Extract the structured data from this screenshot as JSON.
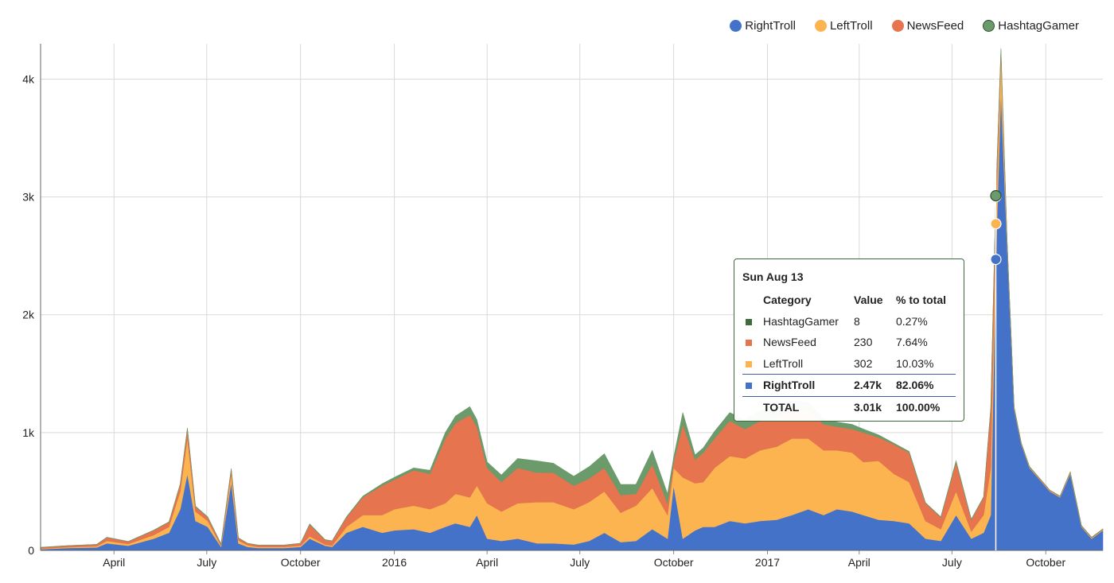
{
  "chart_data": {
    "type": "area",
    "stacked": true,
    "x_axis": {
      "tick_labels": [
        "April",
        "July",
        "October",
        "2016",
        "April",
        "July",
        "October",
        "2017",
        "April",
        "July",
        "October"
      ],
      "tick_dates": [
        "2015-04-01",
        "2015-07-01",
        "2015-10-01",
        "2016-01-01",
        "2016-04-01",
        "2016-07-01",
        "2016-10-01",
        "2017-01-01",
        "2017-04-01",
        "2017-07-01",
        "2017-10-01"
      ],
      "range": [
        "2015-01-19",
        "2017-11-26"
      ]
    },
    "y_axis": {
      "tick_labels": [
        "0",
        "1k",
        "2k",
        "3k",
        "4k"
      ],
      "tick_values": [
        0,
        1000,
        2000,
        3000,
        4000
      ],
      "range": [
        0,
        4300
      ]
    },
    "grid": true,
    "legend_placement": "top-right",
    "x": [
      "2015-01-19",
      "2015-02-15",
      "2015-03-15",
      "2015-03-25",
      "2015-04-15",
      "2015-05-10",
      "2015-05-25",
      "2015-06-05",
      "2015-06-12",
      "2015-06-20",
      "2015-07-02",
      "2015-07-15",
      "2015-07-25",
      "2015-08-01",
      "2015-08-10",
      "2015-08-20",
      "2015-09-01",
      "2015-09-15",
      "2015-10-01",
      "2015-10-10",
      "2015-10-25",
      "2015-11-01",
      "2015-11-15",
      "2015-12-01",
      "2015-12-20",
      "2016-01-01",
      "2016-01-20",
      "2016-02-05",
      "2016-02-20",
      "2016-03-01",
      "2016-03-15",
      "2016-03-22",
      "2016-04-01",
      "2016-04-15",
      "2016-05-01",
      "2016-05-20",
      "2016-06-05",
      "2016-06-25",
      "2016-07-10",
      "2016-07-25",
      "2016-08-10",
      "2016-08-25",
      "2016-09-10",
      "2016-09-25",
      "2016-10-01",
      "2016-10-10",
      "2016-10-22",
      "2016-10-30",
      "2016-11-10",
      "2016-11-25",
      "2016-12-10",
      "2016-12-25",
      "2017-01-10",
      "2017-01-25",
      "2017-02-10",
      "2017-02-25",
      "2017-03-10",
      "2017-03-25",
      "2017-04-05",
      "2017-04-20",
      "2017-05-05",
      "2017-05-20",
      "2017-06-05",
      "2017-06-20",
      "2017-07-05",
      "2017-07-20",
      "2017-08-01",
      "2017-08-08",
      "2017-08-13",
      "2017-08-18",
      "2017-08-24",
      "2017-08-31",
      "2017-09-07",
      "2017-09-15",
      "2017-09-25",
      "2017-10-05",
      "2017-10-15",
      "2017-10-25",
      "2017-11-05",
      "2017-11-15",
      "2017-11-26"
    ],
    "series": [
      {
        "name": "RightTroll",
        "color": "#4472c8",
        "values": [
          10,
          20,
          25,
          60,
          40,
          100,
          150,
          350,
          650,
          250,
          200,
          30,
          580,
          60,
          30,
          20,
          20,
          20,
          30,
          100,
          40,
          30,
          150,
          200,
          150,
          170,
          180,
          150,
          200,
          230,
          200,
          300,
          100,
          80,
          100,
          60,
          60,
          50,
          80,
          150,
          70,
          80,
          180,
          100,
          550,
          100,
          170,
          200,
          200,
          250,
          230,
          250,
          260,
          300,
          350,
          300,
          350,
          330,
          300,
          260,
          250,
          230,
          100,
          80,
          300,
          100,
          150,
          300,
          2470,
          3900,
          2600,
          1200,
          900,
          700,
          600,
          500,
          450,
          650,
          200,
          100,
          170
        ]
      },
      {
        "name": "LeftTroll",
        "color": "#fbb450",
        "values": [
          5,
          8,
          10,
          20,
          15,
          30,
          50,
          150,
          300,
          80,
          50,
          10,
          70,
          25,
          15,
          10,
          10,
          10,
          10,
          20,
          10,
          10,
          50,
          100,
          150,
          180,
          200,
          200,
          200,
          250,
          250,
          250,
          300,
          250,
          300,
          350,
          350,
          300,
          330,
          350,
          250,
          300,
          350,
          200,
          150,
          520,
          400,
          380,
          500,
          550,
          550,
          600,
          620,
          650,
          600,
          550,
          500,
          500,
          450,
          500,
          400,
          350,
          150,
          100,
          200,
          60,
          150,
          400,
          302,
          300,
          30,
          10,
          5,
          5,
          5,
          5,
          5,
          10,
          5,
          5,
          5
        ]
      },
      {
        "name": "NewsFeed",
        "color": "#e5744f",
        "values": [
          10,
          12,
          15,
          30,
          20,
          40,
          40,
          60,
          80,
          40,
          30,
          15,
          40,
          20,
          15,
          15,
          15,
          15,
          20,
          100,
          40,
          40,
          80,
          150,
          250,
          250,
          300,
          300,
          550,
          600,
          700,
          500,
          300,
          250,
          300,
          250,
          250,
          200,
          200,
          200,
          150,
          100,
          200,
          100,
          50,
          450,
          200,
          250,
          250,
          300,
          250,
          250,
          250,
          250,
          250,
          220,
          200,
          200,
          250,
          200,
          250,
          250,
          150,
          100,
          250,
          100,
          150,
          500,
          230,
          50,
          10,
          5,
          5,
          5,
          5,
          5,
          5,
          5,
          5,
          5,
          5
        ]
      },
      {
        "name": "HashtagGamer",
        "color": "#6b9a6b",
        "values": [
          1,
          1,
          1,
          2,
          1,
          2,
          3,
          5,
          10,
          5,
          5,
          1,
          5,
          2,
          1,
          1,
          1,
          1,
          1,
          5,
          2,
          2,
          5,
          10,
          15,
          20,
          20,
          30,
          50,
          60,
          70,
          60,
          50,
          60,
          80,
          100,
          80,
          80,
          100,
          120,
          90,
          80,
          120,
          80,
          40,
          100,
          40,
          40,
          60,
          70,
          80,
          90,
          80,
          70,
          60,
          50,
          40,
          40,
          30,
          20,
          10,
          10,
          5,
          5,
          10,
          5,
          5,
          10,
          8,
          10,
          5,
          2,
          2,
          2,
          2,
          2,
          2,
          2,
          2,
          2,
          2
        ]
      }
    ],
    "hover": {
      "date": "2017-08-13",
      "date_label": "Sun Aug 13",
      "headers": [
        "Category",
        "Value",
        "% to total"
      ],
      "rows": [
        {
          "name": "HashtagGamer",
          "value": "8",
          "pct": "0.27%",
          "color": "#3f6b3f"
        },
        {
          "name": "NewsFeed",
          "value": "230",
          "pct": "7.64%",
          "color": "#e5744f"
        },
        {
          "name": "LeftTroll",
          "value": "302",
          "pct": "10.03%",
          "color": "#fbb450"
        },
        {
          "name": "RightTroll",
          "value": "2.47k",
          "pct": "82.06%",
          "color": "#4472c8"
        }
      ],
      "total": {
        "name": "TOTAL",
        "value": "3.01k",
        "pct": "100.00%"
      },
      "marker_values": [
        2470,
        2772,
        3002,
        3010
      ]
    }
  }
}
